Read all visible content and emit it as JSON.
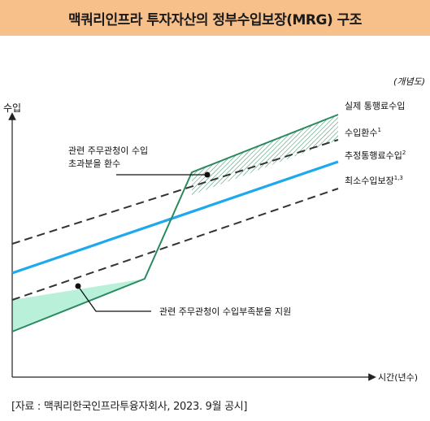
{
  "title": "맥쿼리인프라 투자자산의 정부수입보장(MRG) 구조",
  "note": "(개념도)",
  "axes": {
    "y_label": "수입",
    "x_label": "시간(년수)"
  },
  "legend": {
    "actual": "실제 통행료수입",
    "clawback": "수입환수",
    "clawback_sup": "1",
    "forecast": "추정통행료수입",
    "forecast_sup": "2",
    "guarantee": "최소수입보장",
    "guarantee_sup": "1,3"
  },
  "annotations": {
    "excess_line1": "관련 주무관청이 수입",
    "excess_line2": "초과분을 환수",
    "shortfall": "관련 주무관청이 수입부족분을 지원"
  },
  "colors": {
    "title_bg": "#f7c08a",
    "forecast_line": "#1ea9ef",
    "actual_line": "#2a8a5e",
    "shortfall_fill": "#b9f0da",
    "dashed_line": "#333333"
  },
  "source": "[자료 : 맥쿼리한국인프라투융자회사, 2023. 9월 공시]"
}
